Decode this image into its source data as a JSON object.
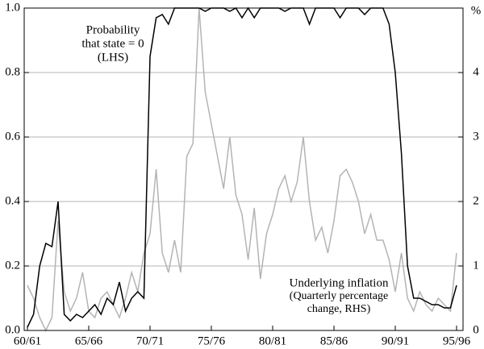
{
  "chart_data": {
    "type": "line",
    "categories": [
      "60/61",
      null,
      null,
      null,
      null,
      null,
      null,
      null,
      null,
      null,
      "65/66",
      null,
      null,
      null,
      null,
      null,
      null,
      null,
      null,
      null,
      "70/71",
      null,
      null,
      null,
      null,
      null,
      null,
      null,
      null,
      null,
      "75/76",
      null,
      null,
      null,
      null,
      null,
      null,
      null,
      null,
      null,
      "80/81",
      null,
      null,
      null,
      null,
      null,
      null,
      null,
      null,
      null,
      "85/86",
      null,
      null,
      null,
      null,
      null,
      null,
      null,
      null,
      null,
      "90/91",
      null,
      null,
      null,
      null,
      null,
      null,
      null,
      null,
      null,
      "95/96"
    ],
    "series": [
      {
        "name": "Probability that state = 0 (LHS)",
        "color": "#000000",
        "axis": "y",
        "values": [
          0.01,
          0.05,
          0.2,
          0.27,
          0.26,
          0.4,
          0.05,
          0.03,
          0.05,
          0.04,
          0.06,
          0.08,
          0.05,
          0.1,
          0.08,
          0.15,
          0.06,
          0.1,
          0.12,
          0.1,
          0.85,
          0.97,
          0.98,
          0.95,
          1.0,
          1.0,
          1.0,
          1.0,
          1.0,
          0.99,
          1.0,
          1.0,
          1.0,
          0.99,
          1.0,
          0.97,
          1.0,
          0.97,
          1.0,
          1.0,
          1.0,
          1.0,
          0.99,
          1.0,
          1.0,
          1.0,
          0.95,
          1.0,
          1.0,
          1.0,
          1.0,
          0.97,
          1.0,
          1.0,
          1.0,
          0.98,
          1.0,
          1.0,
          1.0,
          0.95,
          0.8,
          0.55,
          0.2,
          0.1,
          0.1,
          0.09,
          0.08,
          0.08,
          0.07,
          0.07,
          0.14
        ]
      },
      {
        "name": "Underlying inflation (Quarterly percentage change, RHS)",
        "color": "#b4b4b4",
        "axis": "y2",
        "values": [
          0.7,
          0.5,
          0.2,
          0.0,
          0.2,
          1.7,
          0.6,
          0.3,
          0.5,
          0.9,
          0.3,
          0.2,
          0.5,
          0.6,
          0.4,
          0.2,
          0.5,
          0.9,
          0.6,
          1.2,
          1.5,
          2.5,
          1.2,
          0.9,
          1.4,
          0.9,
          2.7,
          2.9,
          5.0,
          3.7,
          3.2,
          2.7,
          2.2,
          3.0,
          2.1,
          1.8,
          1.1,
          1.9,
          0.8,
          1.5,
          1.8,
          2.2,
          2.4,
          2.0,
          2.3,
          3.0,
          2.0,
          1.4,
          1.6,
          1.2,
          1.7,
          2.4,
          2.5,
          2.3,
          2.0,
          1.5,
          1.8,
          1.4,
          1.4,
          1.1,
          0.6,
          1.2,
          0.5,
          0.3,
          0.6,
          0.4,
          0.3,
          0.5,
          0.4,
          0.3,
          1.2
        ]
      }
    ],
    "annotations": [
      {
        "lines": [
          "Probability",
          "that state = 0",
          "(LHS)"
        ]
      },
      {
        "lines": [
          "Underlying inflation",
          "(Quarterly percentage",
          "change, RHS)"
        ]
      }
    ],
    "y2_unit": "%",
    "ylim": [
      0,
      1
    ],
    "yticks": [
      {
        "value": 0,
        "label": "0.0"
      },
      0.2,
      0.4,
      0.6,
      0.8,
      {
        "value": 1,
        "label": "1.0"
      }
    ],
    "y2lim": [
      0,
      5
    ],
    "y2ticks": [
      0,
      1,
      2,
      3,
      4,
      5
    ],
    "grid": true
  }
}
